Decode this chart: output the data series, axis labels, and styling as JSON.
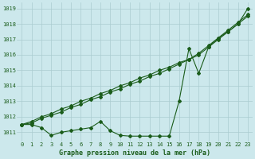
{
  "background_color": "#cce8ec",
  "plot_bg_color": "#cce8ec",
  "grid_color": "#aaccd0",
  "line_color": "#1a5c1a",
  "title": "Graphe pression niveau de la mer (hPa)",
  "xlim": [
    -0.5,
    23.5
  ],
  "ylim": [
    1010.4,
    1019.4
  ],
  "yticks": [
    1011,
    1012,
    1013,
    1014,
    1015,
    1016,
    1017,
    1018,
    1019
  ],
  "xticks": [
    0,
    1,
    2,
    3,
    4,
    5,
    6,
    7,
    8,
    9,
    10,
    11,
    12,
    13,
    14,
    15,
    16,
    17,
    18,
    19,
    20,
    21,
    22,
    23
  ],
  "series1": [
    1011.5,
    1011.7,
    1012.0,
    1012.2,
    1012.5,
    1012.7,
    1013.0,
    1013.2,
    1013.5,
    1013.7,
    1014.0,
    1014.2,
    1014.5,
    1014.7,
    1015.0,
    1015.2,
    1015.5,
    1015.7,
    1016.0,
    1016.5,
    1017.0,
    1017.5,
    1018.0,
    1019.0
  ],
  "series2": [
    1011.5,
    1011.6,
    1011.9,
    1012.1,
    1012.3,
    1012.6,
    1012.8,
    1013.1,
    1013.3,
    1013.6,
    1013.8,
    1014.1,
    1014.3,
    1014.6,
    1014.8,
    1015.1,
    1015.4,
    1015.7,
    1016.1,
    1016.6,
    1017.1,
    1017.6,
    1018.1,
    1018.6
  ],
  "series3": [
    1011.5,
    1011.5,
    1011.3,
    1010.8,
    1011.0,
    1011.1,
    1011.2,
    1011.3,
    1011.7,
    1011.1,
    1010.8,
    1010.75,
    1010.75,
    1010.75,
    1010.75,
    1010.75,
    1013.0,
    1016.4,
    1014.8,
    1016.5,
    1017.1,
    1017.5,
    1018.0,
    1018.5
  ]
}
